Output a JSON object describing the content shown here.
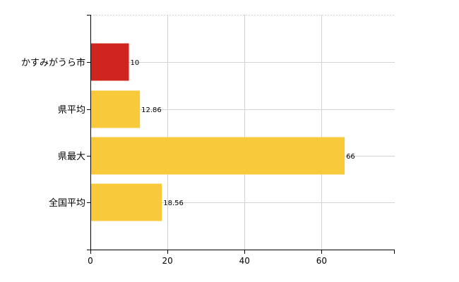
{
  "chart_data": {
    "type": "bar",
    "orientation": "horizontal",
    "categories": [
      "かすみがうら市",
      "県平均",
      "県最大",
      "全国平均"
    ],
    "values": [
      10,
      12.86,
      66,
      18.56
    ],
    "data_labels": [
      "10",
      "12.86",
      "66",
      "18.56"
    ],
    "xlim": [
      0,
      79
    ],
    "x_ticks": [
      0,
      20,
      40,
      60
    ],
    "x_tick_labels": [
      "0",
      "20",
      "40",
      "60"
    ],
    "grid": true,
    "legend": "none",
    "colors": {
      "highlight": "#d0251e",
      "default": "#f8c93a"
    },
    "bar_colors": [
      "highlight",
      "default",
      "default",
      "default"
    ]
  }
}
